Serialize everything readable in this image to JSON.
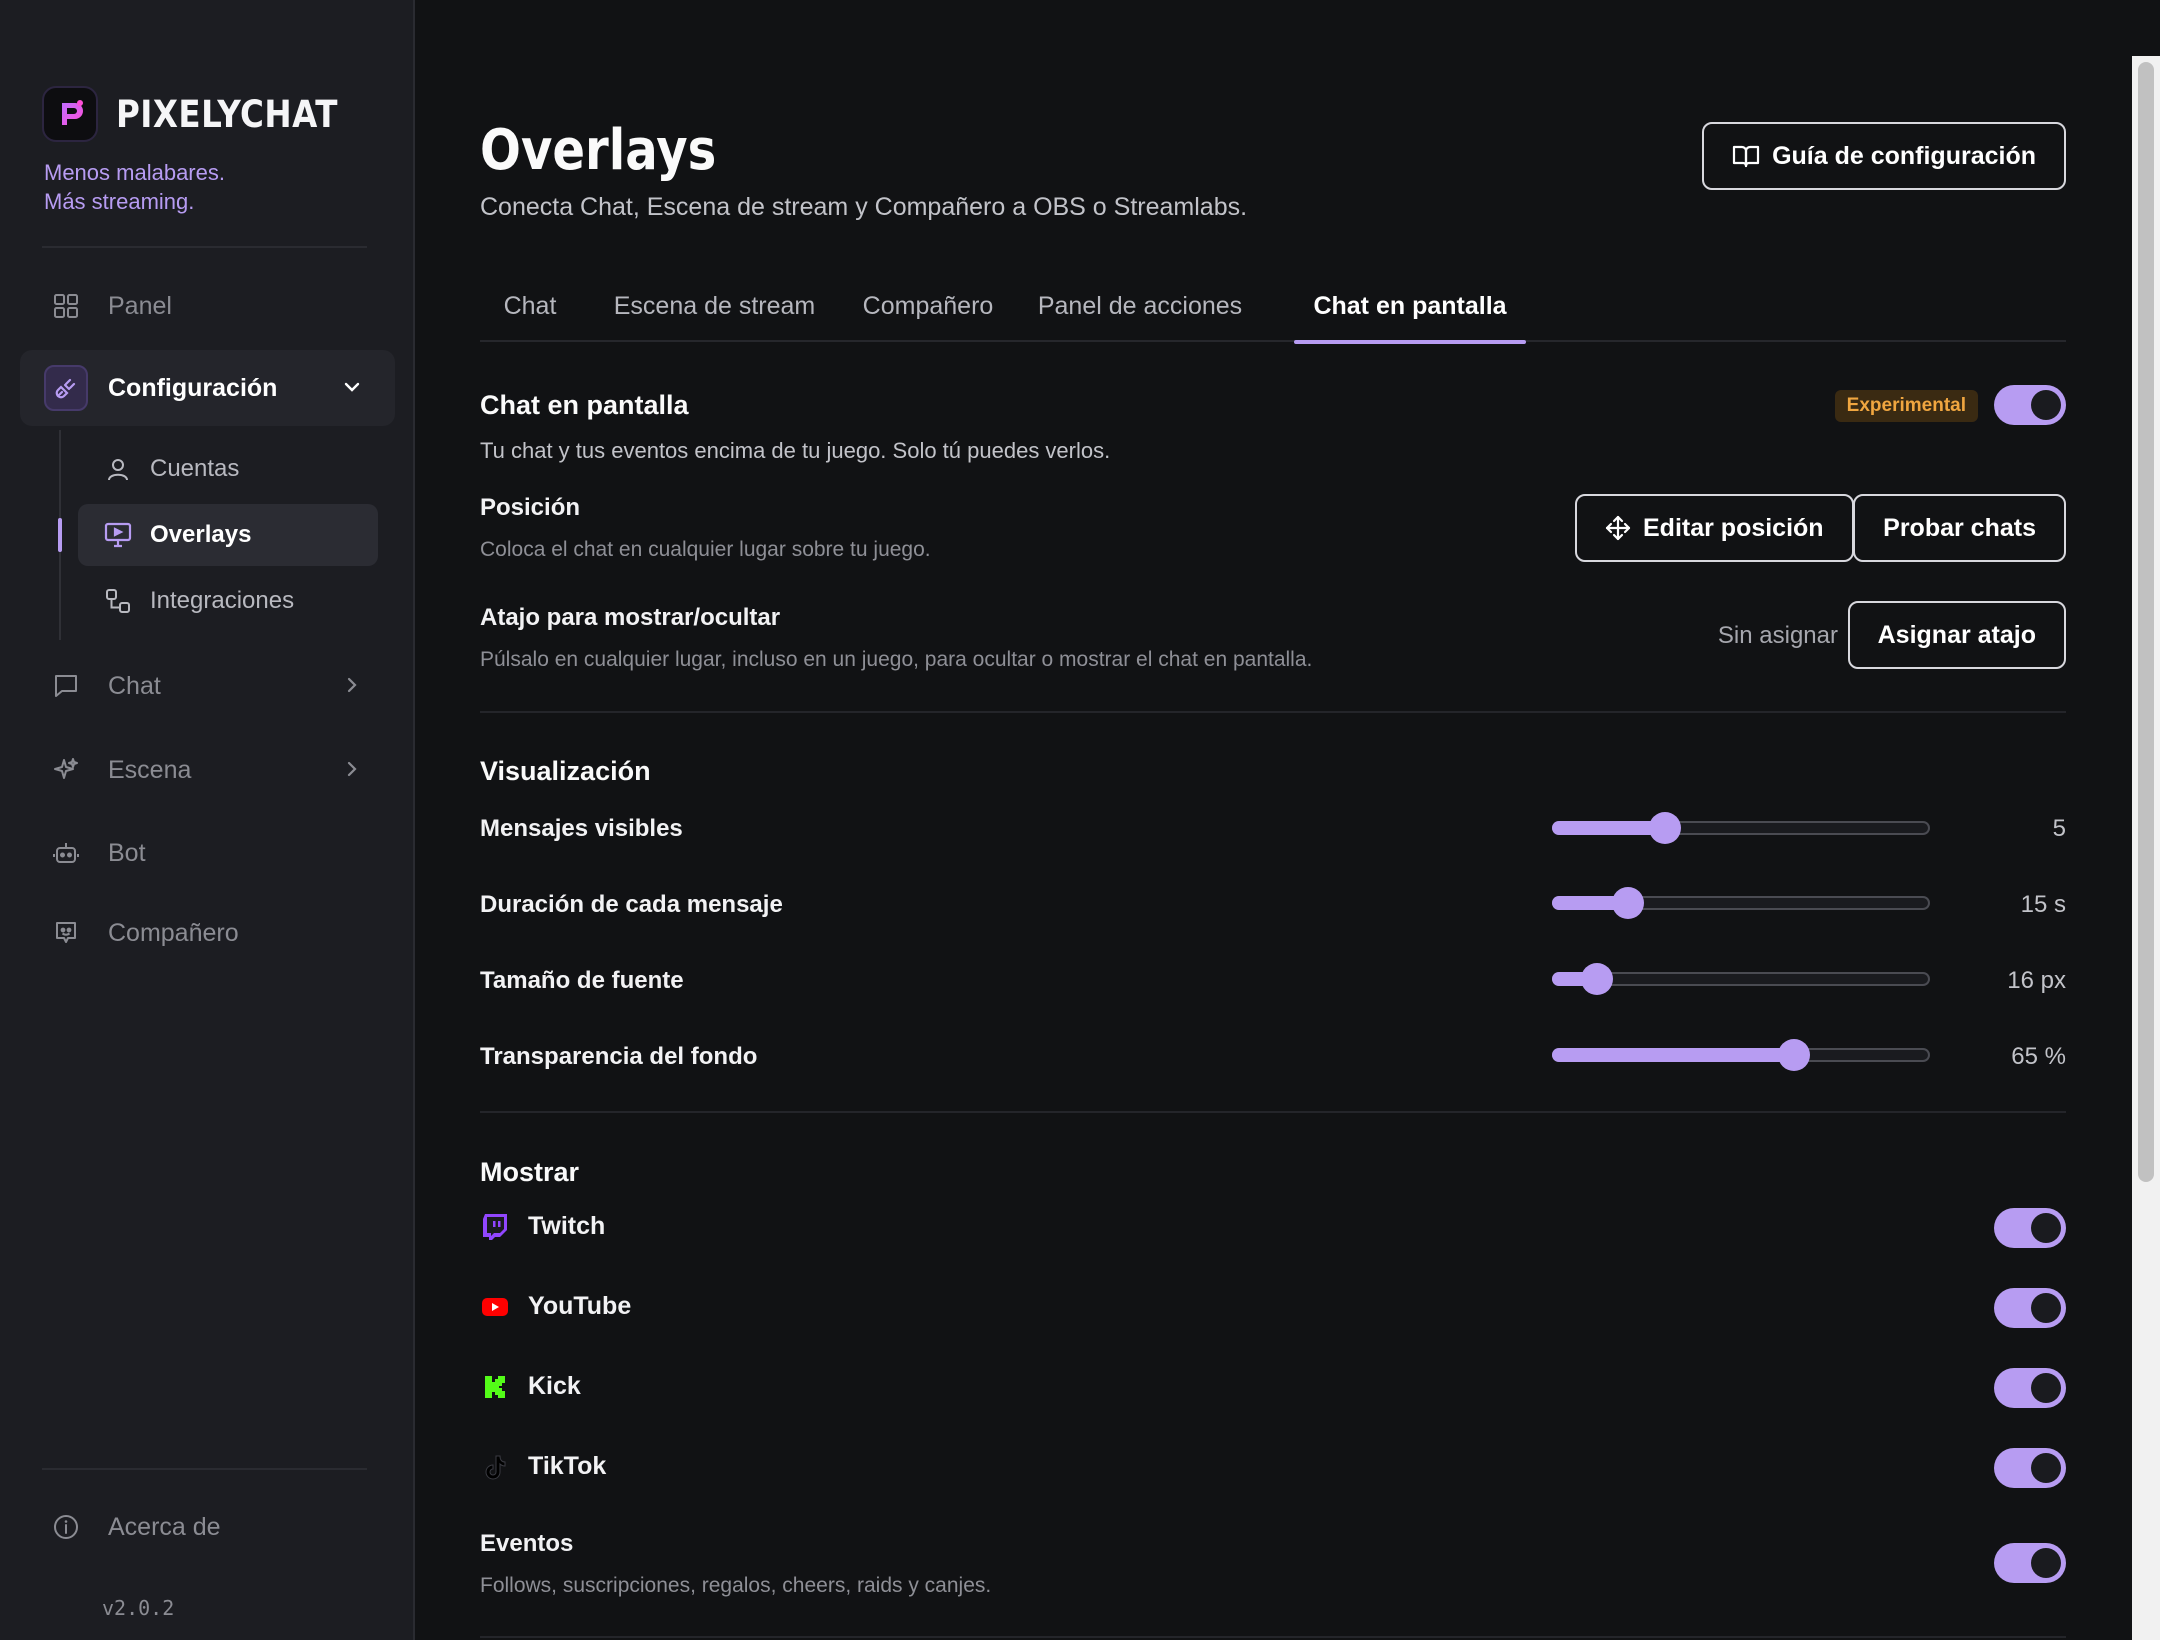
{
  "brand": {
    "name": "PIXELYCHAT",
    "tagline_line1": "Menos malabares.",
    "tagline_line2": "Más streaming."
  },
  "sidebar": {
    "items": [
      {
        "label": "Panel",
        "icon": "grid-icon"
      },
      {
        "label": "Configuración",
        "icon": "plug-icon",
        "expanded": true
      },
      {
        "label": "Chat",
        "icon": "chat-bubble-icon"
      },
      {
        "label": "Escena",
        "icon": "sparkle-icon"
      },
      {
        "label": "Bot",
        "icon": "robot-icon"
      },
      {
        "label": "Compañero",
        "icon": "companion-icon"
      }
    ],
    "sub_items": [
      {
        "label": "Cuentas",
        "icon": "user-icon"
      },
      {
        "label": "Overlays",
        "icon": "monitor-icon",
        "active": true
      },
      {
        "label": "Integraciones",
        "icon": "integrations-icon"
      }
    ],
    "about": {
      "label": "Acerca de",
      "icon": "info-icon"
    },
    "version": "v2.0.2"
  },
  "header": {
    "title": "Overlays",
    "subtitle": "Conecta Chat, Escena de stream y Compañero a OBS o Streamlabs.",
    "guide_button": "Guía de configuración"
  },
  "tabs": [
    {
      "label": "Chat"
    },
    {
      "label": "Escena de stream"
    },
    {
      "label": "Compañero"
    },
    {
      "label": "Panel de acciones"
    },
    {
      "label": "Chat en pantalla",
      "active": true
    }
  ],
  "chat_overlay": {
    "title": "Chat en pantalla",
    "badge": "Experimental",
    "enabled": true,
    "description": "Tu chat y tus eventos encima de tu juego. Solo tú puedes verlos.",
    "position": {
      "title": "Posición",
      "description": "Coloca el chat en cualquier lugar sobre tu juego.",
      "edit_button": "Editar posición",
      "test_button": "Probar chats"
    },
    "shortcut": {
      "title": "Atajo para mostrar/ocultar",
      "description": "Púlsalo en cualquier lugar, incluso en un juego, para ocultar o mostrar el chat en pantalla.",
      "status": "Sin asignar",
      "assign_button": "Asignar atajo"
    }
  },
  "visualization": {
    "title": "Visualización",
    "sliders": [
      {
        "label": "Mensajes visibles",
        "value_text": "5",
        "fraction": 0.3
      },
      {
        "label": "Duración de cada mensaje",
        "value_text": "15 s",
        "fraction": 0.2
      },
      {
        "label": "Tamaño de fuente",
        "value_text": "16 px",
        "fraction": 0.12
      },
      {
        "label": "Transparencia del fondo",
        "value_text": "65 %",
        "fraction": 0.64
      }
    ]
  },
  "show": {
    "title": "Mostrar",
    "platforms": [
      {
        "label": "Twitch",
        "icon": "twitch-icon",
        "color": "#9146ff",
        "enabled": true
      },
      {
        "label": "YouTube",
        "icon": "youtube-icon",
        "color": "#ff0000",
        "enabled": true
      },
      {
        "label": "Kick",
        "icon": "kick-icon",
        "color": "#53fc18",
        "enabled": true
      },
      {
        "label": "TikTok",
        "icon": "tiktok-icon",
        "color": "#000000",
        "enabled": true
      }
    ],
    "events": {
      "title": "Eventos",
      "description": "Follows, suscripciones, regalos, cheers, raids y canjes.",
      "enabled": true
    }
  },
  "colors": {
    "accent": "#b79cf2",
    "badge_text": "#f0a640",
    "background": "#111214",
    "sidebar": "#1c1d22"
  }
}
